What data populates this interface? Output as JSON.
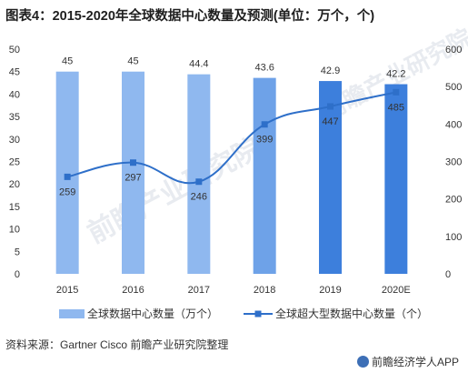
{
  "title": "图表4：2015-2020年全球数据中心数量及预测(单位：万个，个)",
  "source": "资料来源：Gartner Cisco 前瞻产业研究院整理",
  "brand": "前瞻经济学人APP",
  "colors": {
    "bar_light": "#8fb8ef",
    "bar_dark": "#3d7fdc",
    "line": "#2e6fc9",
    "text": "#333333"
  },
  "chart_data": {
    "type": "bar+line",
    "categories": [
      "2015",
      "2016",
      "2017",
      "2018",
      "2019",
      "2020E"
    ],
    "series": [
      {
        "name": "全球数据中心数量（万个）",
        "type": "bar",
        "axis": "left",
        "values": [
          45,
          45,
          44.4,
          43.6,
          42.9,
          42.2
        ]
      },
      {
        "name": "全球超大型数据中心数量（个）",
        "type": "line",
        "axis": "right",
        "values": [
          259,
          297,
          246,
          399,
          447,
          485
        ]
      }
    ],
    "left_axis": {
      "min": 0,
      "max": 50,
      "ticks": [
        0,
        5,
        10,
        15,
        20,
        25,
        30,
        35,
        40,
        45,
        50
      ]
    },
    "right_axis": {
      "min": 0,
      "max": 600,
      "ticks": [
        0,
        100,
        200,
        300,
        400,
        500,
        600
      ]
    },
    "legend_position": "bottom",
    "grid": false
  }
}
